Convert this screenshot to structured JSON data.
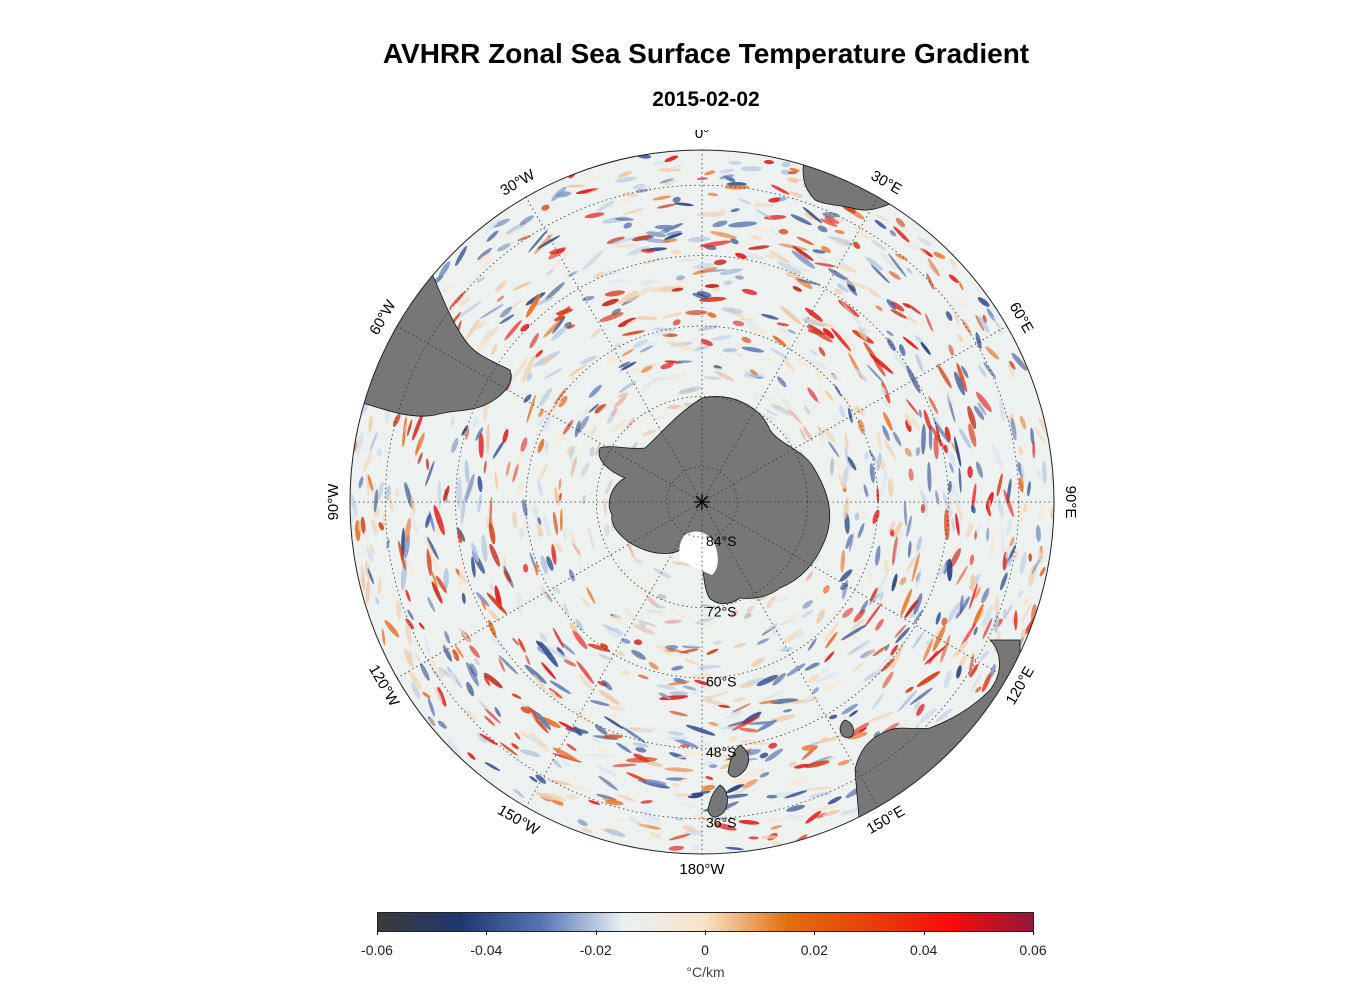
{
  "title": "AVHRR Zonal Sea Surface Temperature Gradient",
  "subtitle": "2015-02-02",
  "map": {
    "projection": "south polar stereographic",
    "center": "South Pole",
    "longitude_labels": [
      {
        "lon": 0,
        "text": "0°"
      },
      {
        "lon": 30,
        "text": "30°E"
      },
      {
        "lon": 60,
        "text": "60°E"
      },
      {
        "lon": 90,
        "text": "90°E"
      },
      {
        "lon": 120,
        "text": "120°E"
      },
      {
        "lon": 150,
        "text": "150°E"
      },
      {
        "lon": 180,
        "text": "180°W"
      },
      {
        "lon": -150,
        "text": "150°W"
      },
      {
        "lon": -120,
        "text": "120°W"
      },
      {
        "lon": -90,
        "text": "90°W"
      },
      {
        "lon": -60,
        "text": "60°W"
      },
      {
        "lon": -30,
        "text": "30°W"
      }
    ],
    "latitude_labels": [
      {
        "lat": -84,
        "text": "84°S"
      },
      {
        "lat": -72,
        "text": "72°S"
      },
      {
        "lat": -60,
        "text": "60°S"
      },
      {
        "lat": -48,
        "text": "48°S"
      },
      {
        "lat": -36,
        "text": "36°S"
      }
    ],
    "land_color": "#777777",
    "ocean_base_color": "#edf1ef",
    "grid_style": "dotted"
  },
  "colorbar": {
    "ticks": [
      "-0.06",
      "-0.04",
      "-0.02",
      "0",
      "0.02",
      "0.04",
      "0.06"
    ],
    "range": [
      -0.06,
      0.06
    ],
    "unit": "°C/km",
    "colors": [
      "#3b3b3b",
      "#1f3670",
      "#5575b5",
      "#e9f1f4",
      "#f8e2c6",
      "#e0700f",
      "#e6400c",
      "#fb0a0a",
      "#8f1a3b"
    ]
  }
}
